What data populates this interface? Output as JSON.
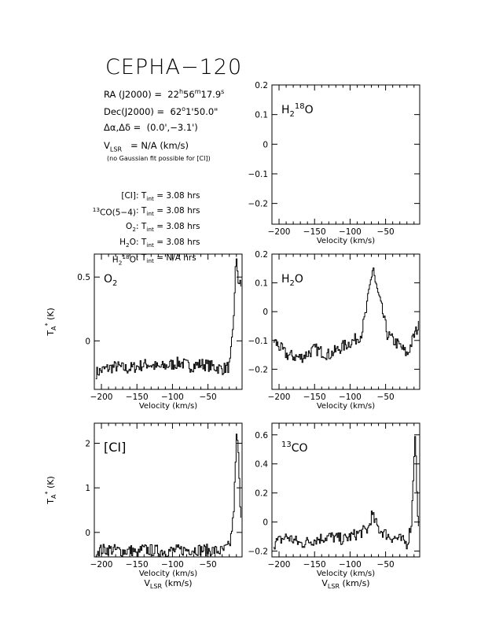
{
  "title": "CEPHA−120",
  "info": {
    "ra": {
      "label": "RA (J2000) =",
      "h": "22",
      "m": "56",
      "s": "17.9"
    },
    "dec": {
      "label": "Dec(J2000) =",
      "deg": "62",
      "rest": "1'50.0\""
    },
    "offset": {
      "label": "Δα,Δδ =",
      "value": "(0.0',−3.1')"
    },
    "vlsr": {
      "label": "V",
      "sub": "LSR",
      "value": "= N/A  (km/s)"
    },
    "note": "(no Gaussian fit possible for [CI])"
  },
  "observations": [
    {
      "pre": "",
      "sup": "",
      "name": "[CI]",
      "sub": "",
      "sup2": "",
      "tail": "",
      "time": "3.08 hrs"
    },
    {
      "pre": "",
      "sup": "13",
      "name": "CO(5−4)",
      "sub": "",
      "sup2": "",
      "tail": "",
      "time": "3.08 hrs"
    },
    {
      "pre": "",
      "sup": "",
      "name": "O",
      "sub": "2",
      "sup2": "",
      "tail": "",
      "time": "3.08 hrs"
    },
    {
      "pre": "",
      "sup": "",
      "name": "H",
      "sub": "2",
      "sup2": "",
      "tail": "O",
      "time": "3.08 hrs"
    },
    {
      "pre": "",
      "sup": "",
      "name": "H",
      "sub": "2",
      "sup2": "18",
      "tail": "O",
      "time": "N/A hrs"
    }
  ],
  "tint_label": "T",
  "tint_sub": "int",
  "chart_data": [
    {
      "id": "h218o",
      "type": "line",
      "label": "H2 18O",
      "xlim": [
        -210,
        -2
      ],
      "ylim": [
        -0.27,
        0.2
      ],
      "xticks": [
        -200,
        -150,
        -100,
        -50
      ],
      "xticklabels": [
        "−200",
        "−150",
        "−100",
        "−50"
      ],
      "yticks": [
        -0.2,
        -0.1,
        0,
        0.1,
        0.2
      ],
      "yticklabels": [
        "−0.2",
        "−0.1",
        "0",
        "0.1",
        "0.2"
      ],
      "xlabel": "Velocity (km/s)",
      "ylabel": "",
      "series": []
    },
    {
      "id": "o2",
      "type": "line",
      "label": "O2",
      "xlim": [
        -210,
        -2
      ],
      "ylim": [
        -0.38,
        0.68
      ],
      "xticks": [
        -200,
        -150,
        -100,
        -50
      ],
      "xticklabels": [
        "−200",
        "−150",
        "−100",
        "−50"
      ],
      "yticks": [
        0,
        0.5
      ],
      "yticklabels": [
        "0",
        "0.5"
      ],
      "xlabel": "Velocity (km/s)",
      "ylabel": "T*A (K)",
      "series": [
        {
          "x": [
            -208,
            -195,
            -180,
            -165,
            -150,
            -135,
            -120,
            -105,
            -90,
            -75,
            -60,
            -45,
            -30,
            -20,
            -15,
            -12,
            -10,
            -8,
            -6,
            -4
          ],
          "y": [
            -0.25,
            -0.22,
            -0.2,
            -0.22,
            -0.2,
            -0.18,
            -0.21,
            -0.19,
            -0.17,
            -0.2,
            -0.18,
            -0.2,
            -0.22,
            -0.2,
            0.1,
            0.55,
            0.62,
            0.48,
            0.45,
            0.42
          ]
        }
      ]
    },
    {
      "id": "h2o",
      "type": "line",
      "label": "H2O",
      "xlim": [
        -210,
        -2
      ],
      "ylim": [
        -0.27,
        0.2
      ],
      "xticks": [
        -200,
        -150,
        -100,
        -50
      ],
      "xticklabels": [
        "−200",
        "−150",
        "−100",
        "−50"
      ],
      "yticks": [
        -0.2,
        -0.1,
        0,
        0.1,
        0.2
      ],
      "yticklabels": [
        "−0.2",
        "−0.1",
        "0",
        "0.1",
        "0.2"
      ],
      "xlabel": "Velocity (km/s)",
      "ylabel": "",
      "series": [
        {
          "x": [
            -208,
            -190,
            -170,
            -150,
            -130,
            -110,
            -95,
            -85,
            -78,
            -72,
            -68,
            -65,
            -60,
            -55,
            -48,
            -40,
            -30,
            -20,
            -10,
            -4
          ],
          "y": [
            -0.1,
            -0.15,
            -0.16,
            -0.13,
            -0.15,
            -0.12,
            -0.1,
            -0.08,
            0.0,
            0.1,
            0.16,
            0.1,
            0.05,
            0.0,
            -0.08,
            -0.1,
            -0.12,
            -0.15,
            -0.08,
            -0.05
          ]
        }
      ]
    },
    {
      "id": "ci",
      "type": "line",
      "label": "[CI]",
      "xlim": [
        -210,
        -2
      ],
      "ylim": [
        -0.55,
        2.45
      ],
      "xticks": [
        -200,
        -150,
        -100,
        -50
      ],
      "xticklabels": [
        "−200",
        "−150",
        "−100",
        "−50"
      ],
      "yticks": [
        0,
        1,
        2
      ],
      "yticklabels": [
        "0",
        "1",
        "2"
      ],
      "xlabel": "Velocity (km/s)",
      "ylabel": "T*A (K)",
      "bottom_label": "VLSR (km/s)",
      "series": [
        {
          "x": [
            -208,
            -190,
            -170,
            -155,
            -150,
            -145,
            -130,
            -110,
            -90,
            -70,
            -50,
            -30,
            -20,
            -15,
            -12,
            -10,
            -8,
            -6,
            -4
          ],
          "y": [
            -0.4,
            -0.38,
            -0.42,
            -0.4,
            -0.55,
            -0.38,
            -0.4,
            -0.42,
            -0.4,
            -0.38,
            -0.4,
            -0.42,
            -0.3,
            0.3,
            1.4,
            2.3,
            1.8,
            0.9,
            0.4
          ]
        }
      ]
    },
    {
      "id": "13co",
      "type": "line",
      "label": "13CO",
      "xlim": [
        -210,
        -2
      ],
      "ylim": [
        -0.24,
        0.68
      ],
      "xticks": [
        -200,
        -150,
        -100,
        -50
      ],
      "xticklabels": [
        "−200",
        "−150",
        "−100",
        "−50"
      ],
      "yticks": [
        -0.2,
        0,
        0.2,
        0.4,
        0.6
      ],
      "yticklabels": [
        "−0.2",
        "0",
        "0.2",
        "0.4",
        "0.6"
      ],
      "xlabel": "Velocity (km/s)",
      "ylabel": "",
      "bottom_label": "VLSR (km/s)",
      "series": [
        {
          "x": [
            -208,
            -190,
            -170,
            -150,
            -130,
            -110,
            -90,
            -75,
            -70,
            -60,
            -45,
            -30,
            -20,
            -14,
            -11,
            -9,
            -7,
            -5,
            -4
          ],
          "y": [
            -0.15,
            -0.1,
            -0.15,
            -0.12,
            -0.1,
            -0.12,
            -0.08,
            -0.05,
            0.05,
            -0.05,
            -0.1,
            -0.12,
            -0.15,
            0.0,
            0.4,
            0.63,
            0.3,
            0.0,
            -0.05
          ]
        }
      ]
    }
  ]
}
